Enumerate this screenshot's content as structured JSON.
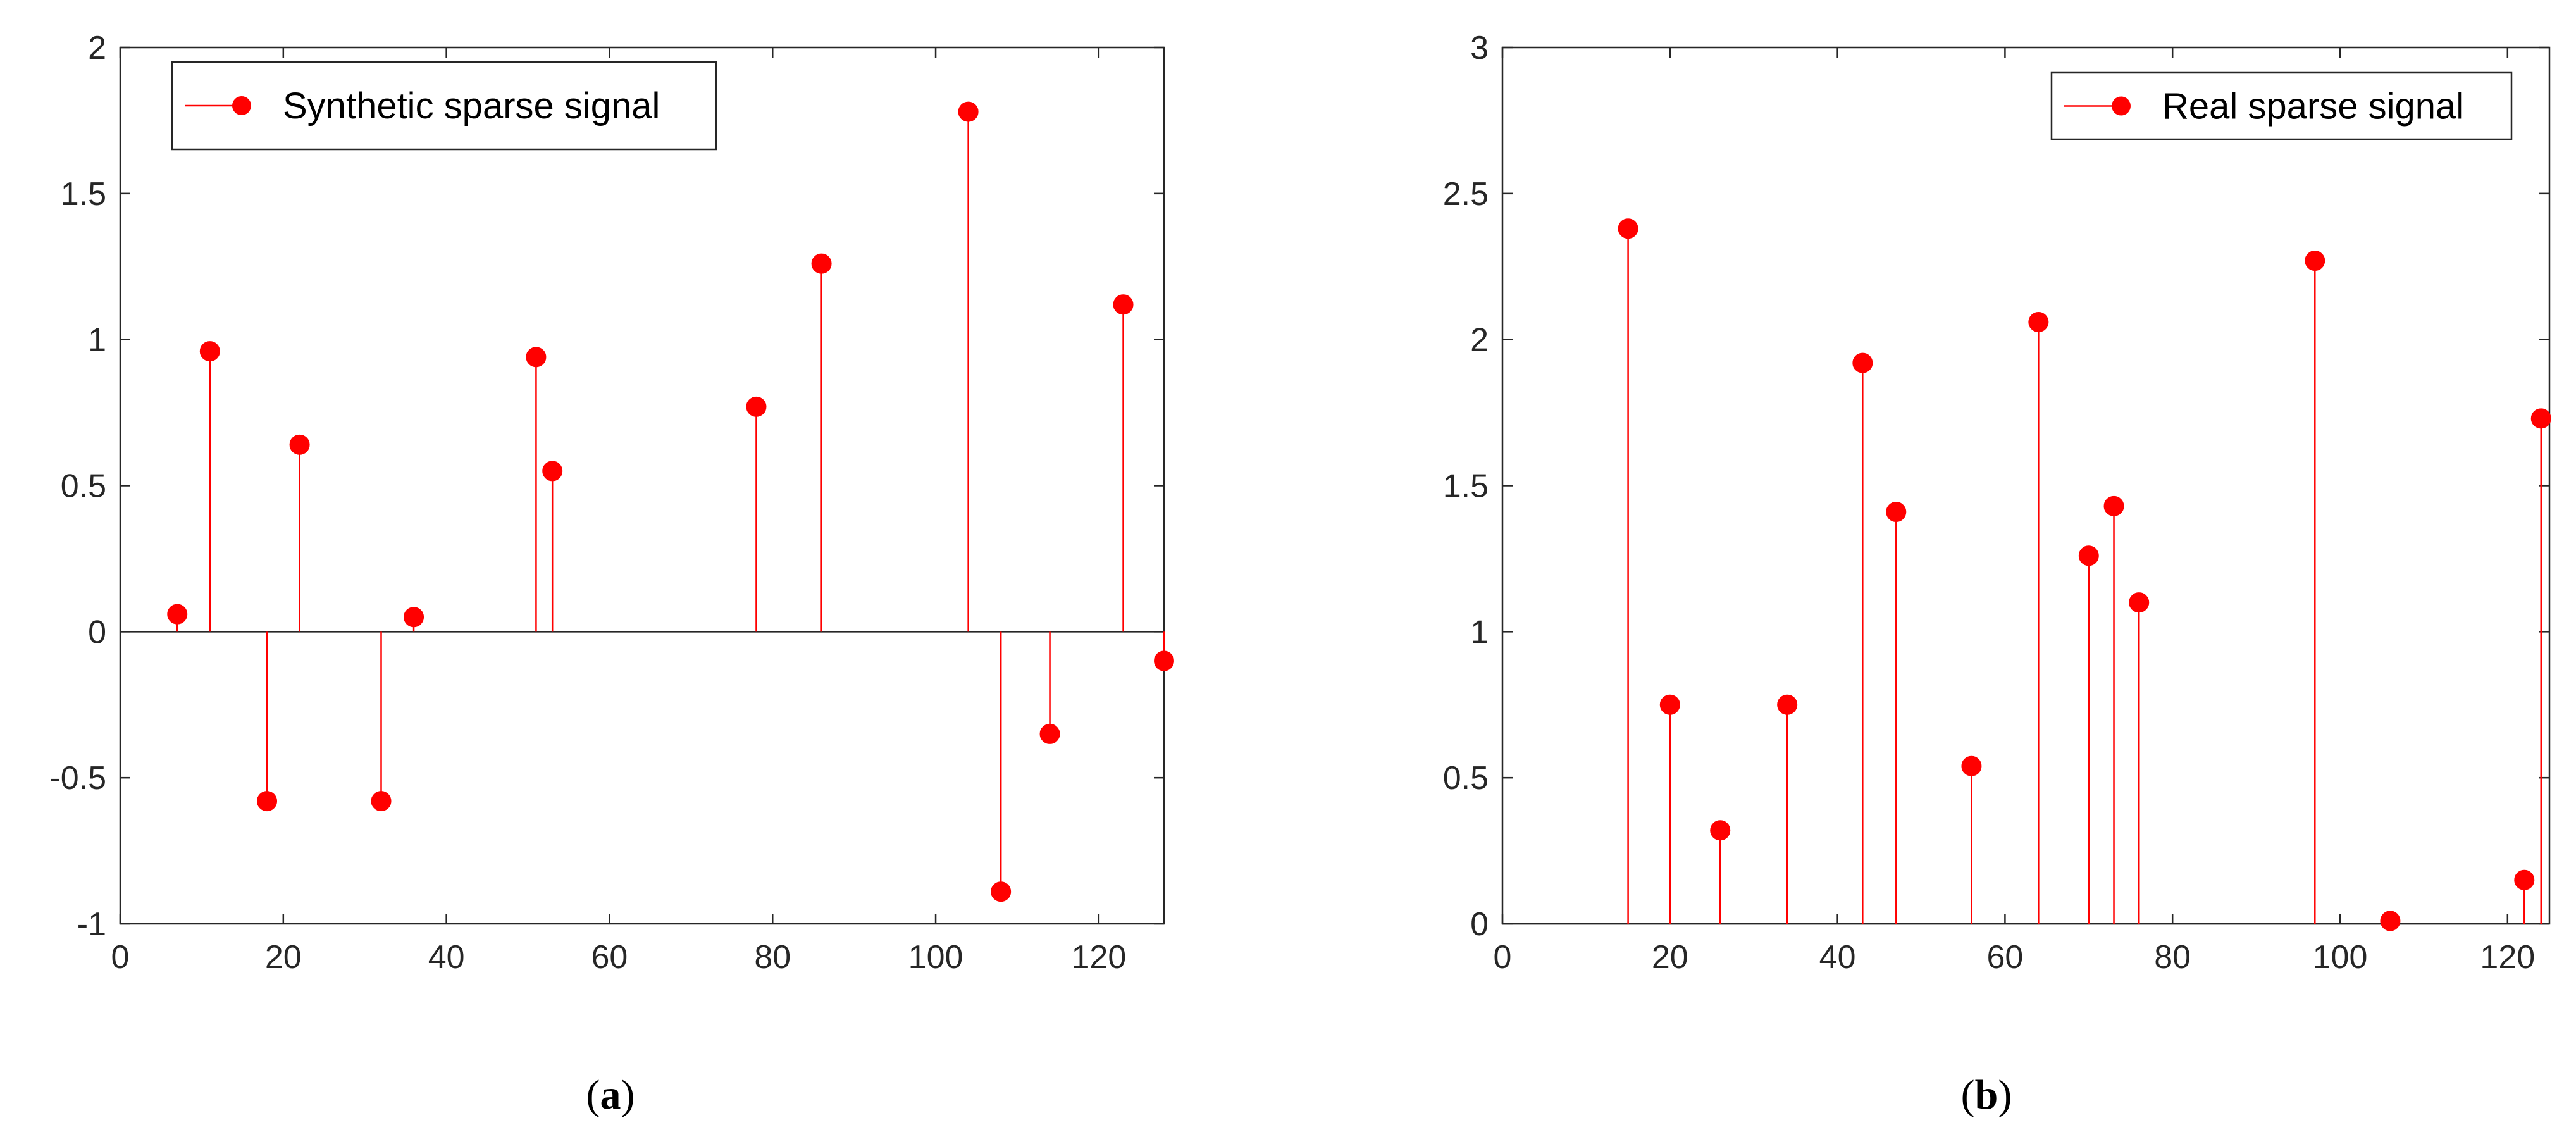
{
  "chart_data": [
    {
      "type": "scatter",
      "subtype": "stem",
      "title": "",
      "xlabel": "",
      "ylabel": "",
      "xlim": [
        0,
        128
      ],
      "ylim": [
        -1,
        2
      ],
      "xticks": [
        0,
        20,
        40,
        60,
        80,
        100,
        120
      ],
      "yticks": [
        -1,
        -0.5,
        0,
        0.5,
        1,
        1.5,
        2
      ],
      "baseline": 0,
      "legend_position": "top-left",
      "color": "#ff0000",
      "series": [
        {
          "name": "Synthetic sparse signal",
          "x": [
            7,
            11,
            18,
            22,
            32,
            36,
            51,
            53,
            78,
            86,
            104,
            108,
            114,
            123,
            128
          ],
          "y": [
            0.06,
            0.96,
            -0.58,
            0.64,
            -0.58,
            0.05,
            0.94,
            0.55,
            0.77,
            1.26,
            1.78,
            -0.89,
            -0.35,
            1.12,
            -0.1
          ]
        }
      ],
      "caption_label": "a"
    },
    {
      "type": "scatter",
      "subtype": "stem",
      "title": "",
      "xlabel": "",
      "ylabel": "",
      "xlim": [
        0,
        125
      ],
      "ylim": [
        0,
        3
      ],
      "xticks": [
        0,
        20,
        40,
        60,
        80,
        100,
        120
      ],
      "yticks": [
        0,
        0.5,
        1,
        1.5,
        2,
        2.5,
        3
      ],
      "baseline": 0,
      "legend_position": "top-right",
      "color": "#ff0000",
      "series": [
        {
          "name": "Real sparse signal",
          "x": [
            15,
            20,
            26,
            34,
            43,
            47,
            56,
            64,
            70,
            73,
            76,
            97,
            106,
            122,
            124
          ],
          "y": [
            2.38,
            0.75,
            0.32,
            0.75,
            1.92,
            1.41,
            0.54,
            2.06,
            1.26,
            1.43,
            1.1,
            2.27,
            0.01,
            0.15,
            1.73
          ]
        }
      ],
      "caption_label": "b"
    }
  ]
}
